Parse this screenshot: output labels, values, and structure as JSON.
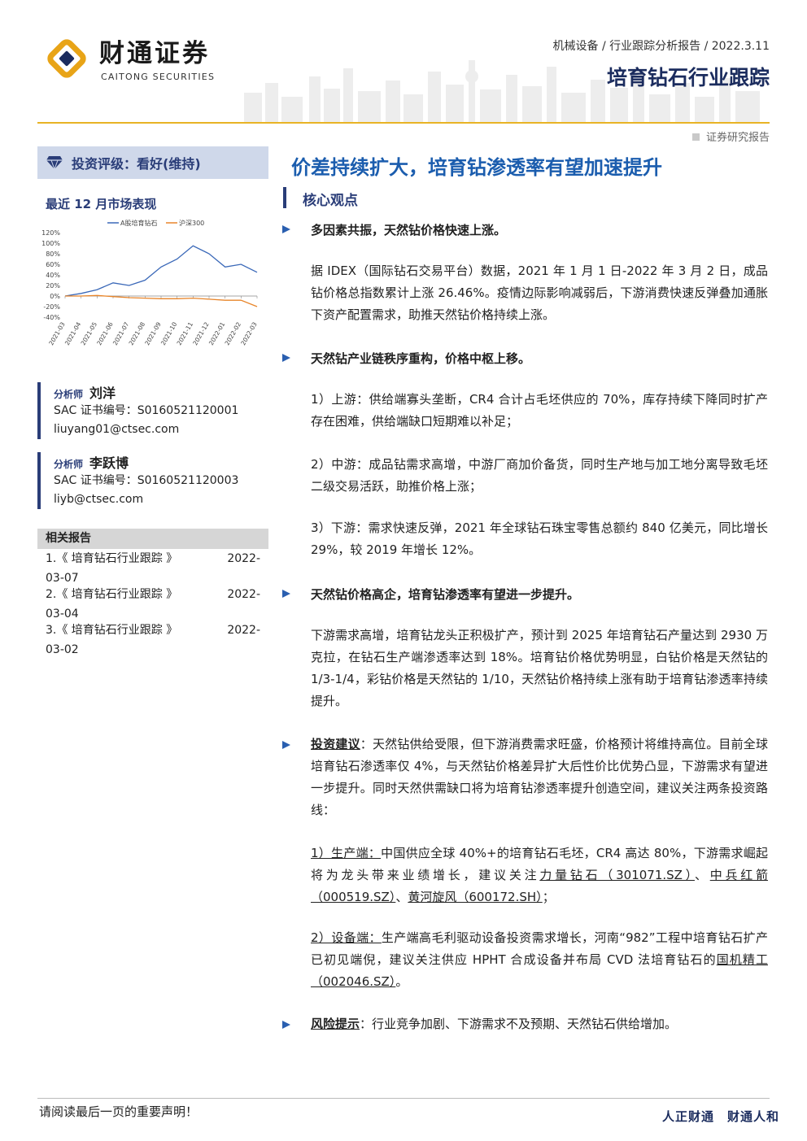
{
  "header": {
    "brand_cn": "财通证券",
    "brand_en": "CAITONG SECURITIES",
    "meta": "机械设备 / 行业跟踪分析报告 / 2022.3.11",
    "title": "培育钻石行业跟踪",
    "doc_type": "证券研究报告"
  },
  "sidebar": {
    "rating": "投资评级：看好(维持)",
    "market_title": "最近 12 月市场表现",
    "analysts": [
      {
        "role": "分析师",
        "name": "刘洋",
        "sac": "SAC 证书编号：S0160521120001",
        "email": "liuyang01@ctsec.com"
      },
      {
        "role": "分析师",
        "name": "李跃博",
        "sac": "SAC 证书编号：S0160521120003",
        "email": "liyb@ctsec.com"
      }
    ],
    "related_title": "相关报告",
    "related": [
      {
        "left": "1.《 培育钻石行业跟踪 》",
        "right": "2022-",
        "date_tail": "03-07"
      },
      {
        "left": "2.《 培育钻石行业跟踪 》",
        "right": "2022-",
        "date_tail": "03-04"
      },
      {
        "left": "3.《 培育钻石行业跟踪 》",
        "right": "2022-",
        "date_tail": "03-02"
      }
    ]
  },
  "chart_data": {
    "type": "line",
    "title": "",
    "legend": [
      "A股培育钻石",
      "沪深300"
    ],
    "ylim": [
      -40,
      120
    ],
    "yticks": [
      "120%",
      "100%",
      "80%",
      "60%",
      "40%",
      "20%",
      "0%",
      "-20%",
      "-40%"
    ],
    "x": [
      "2021-03",
      "2021-04",
      "2021-05",
      "2021-06",
      "2021-07",
      "2021-08",
      "2021-09",
      "2021-10",
      "2021-11",
      "2021-12",
      "2022-01",
      "2022-02",
      "2022-03"
    ],
    "series": [
      {
        "name": "A股培育钻石",
        "color": "#3a68b8",
        "values": [
          0,
          5,
          12,
          25,
          20,
          30,
          55,
          70,
          95,
          80,
          55,
          60,
          45
        ]
      },
      {
        "name": "沪深300",
        "color": "#e8852a",
        "values": [
          0,
          0,
          1,
          -1,
          -3,
          -4,
          -5,
          -5,
          -4,
          -6,
          -8,
          -8,
          -20
        ]
      }
    ]
  },
  "main": {
    "title": "价差持续扩大，培育钻渗透率有望加速提升",
    "core_title": "核心观点",
    "s1_head": "多因素共振，天然钻价格快速上涨。",
    "s1_p": "据 IDEX（国际钻石交易平台）数据，2021 年 1 月 1 日-2022 年 3 月 2 日，成品钻价格总指数累计上涨 26.46%。疫情边际影响减弱后，下游消费快速反弹叠加通胀下资产配置需求，助推天然钻价格持续上涨。",
    "s2_head": "天然钻产业链秩序重构，价格中枢上移。",
    "s2_p1": "1）上游：供给端寡头垄断，CR4 合计占毛坯供应的 70%，库存持续下降同时扩产存在困难，供给端缺口短期难以补足；",
    "s2_p2": "2）中游：成品钻需求高增，中游厂商加价备货，同时生产地与加工地分离导致毛坯二级交易活跃，助推价格上涨；",
    "s2_p3": "3）下游：需求快速反弹，2021 年全球钻石珠宝零售总额约 840 亿美元，同比增长 29%，较 2019 年增长 12%。",
    "s3_head": "天然钻价格高企，培育钻渗透率有望进一步提升。",
    "s3_p": "下游需求高增，培育钻龙头正积极扩产，预计到 2025 年培育钻石产量达到 2930 万克拉，在钻石生产端渗透率达到 18%。培育钻价格优势明显，白钻价格是天然钻的 1/3-1/4，彩钻价格是天然钻的 1/10，天然钻价格持续上涨有助于培育钻渗透率持续提升。",
    "s4_head": "投资建议",
    "s4_p": "：天然钻供给受限，但下游消费需求旺盛，价格预计将维持高位。目前全球培育钻石渗透率仅 4%，与天然钻价格差异扩大后性价比优势凸显，下游需求有望进一步提升。同时天然供需缺口将为培育钻渗透率提升创造空间，建议关注两条投资路线：",
    "s4_p2_lead": "1）生产端：",
    "s4_p2_body": "中国供应全球 40%+的培育钻石毛坯，CR4 高达 80%，下游需求崛起将为龙头带来业绩增长，建议关注",
    "s4_p2_stock1": "力量钻石（301071.SZ）",
    "s4_p2_sep1": "、",
    "s4_p2_stock2": "中兵红箭（000519.SZ）",
    "s4_p2_sep2": "、",
    "s4_p2_stock3": "黄河旋风（600172.SH）",
    "s4_p2_end": "；",
    "s4_p3_lead": "2）设备端：",
    "s4_p3_body": "生产端高毛利驱动设备投资需求增长，河南“982”工程中培育钻石扩产已初见端倪，建议关注供应 HPHT 合成设备并布局 CVD 法培育钻石的",
    "s4_p3_stock": "国机精工（002046.SZ）",
    "s4_p3_end": "。",
    "s5_head": "风险提示",
    "s5_p": "：行业竞争加剧、下游需求不及预期、天然钻石供给增加。"
  },
  "footer": {
    "note": "请阅读最后一页的重要声明！",
    "slogan": "人正财通　财通人和"
  }
}
